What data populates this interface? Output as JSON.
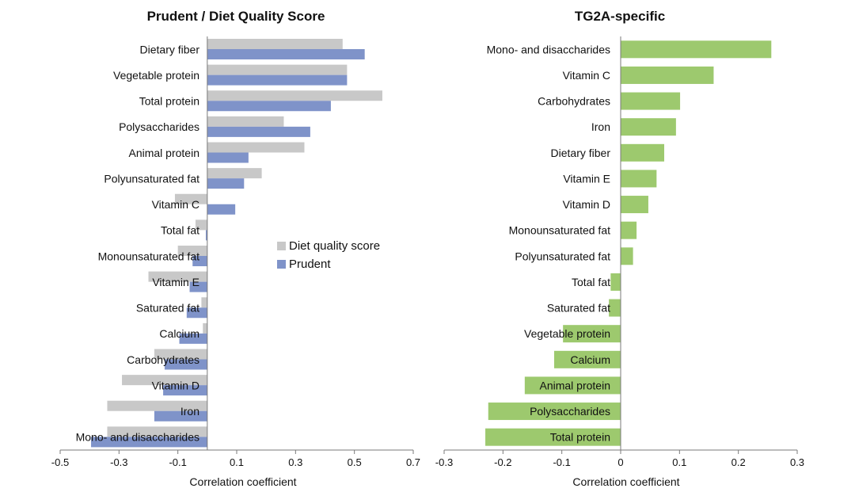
{
  "chart_data": [
    {
      "type": "bar",
      "orientation": "horizontal",
      "title": "Prudent / Diet Quality Score",
      "xlabel": "Correlation coefficient",
      "ylabel": "",
      "xlim": [
        -0.5,
        0.7
      ],
      "xticks": [
        "-0.5",
        "-0.3",
        "-0.1",
        "0.1",
        "0.3",
        "0.5",
        "0.7"
      ],
      "legend_position": "center-right",
      "categories": [
        "Dietary fiber",
        "Vegetable protein",
        "Total protein",
        "Polysaccharides",
        "Animal protein",
        "Polyunsaturated fat",
        "Vitamin C",
        "Total fat",
        "Monounsaturated fat",
        "Vitamin E",
        "Saturated fat",
        "Calcium",
        "Carbohydrates",
        "Vitamin D",
        "Iron",
        "Mono- and disaccharides"
      ],
      "series": [
        {
          "name": "Diet quality score",
          "color": "#c8c8c8",
          "values": [
            0.46,
            0.475,
            0.595,
            0.26,
            0.33,
            0.185,
            -0.11,
            -0.04,
            -0.1,
            -0.2,
            -0.02,
            -0.015,
            -0.18,
            -0.29,
            -0.34,
            -0.34
          ]
        },
        {
          "name": "Prudent",
          "color": "#7f93c9",
          "values": [
            0.535,
            0.475,
            0.42,
            0.35,
            0.14,
            0.125,
            0.095,
            -0.005,
            -0.05,
            -0.06,
            -0.07,
            -0.095,
            -0.145,
            -0.15,
            -0.18,
            -0.395
          ]
        }
      ]
    },
    {
      "type": "bar",
      "orientation": "horizontal",
      "title": "TG2A-specific",
      "xlabel": "Correlation coefficient",
      "ylabel": "",
      "xlim": [
        -0.3,
        0.3
      ],
      "xticks": [
        "-0.3",
        "-0.2",
        "-0.1",
        "0",
        "0.1",
        "0.2",
        "0.3"
      ],
      "categories": [
        "Mono- and disaccharides",
        "Vitamin C",
        "Carbohydrates",
        "Iron",
        "Dietary fiber",
        "Vitamin E",
        "Vitamin D",
        "Monounsaturated fat",
        "Polyunsaturated fat",
        "Total fat",
        "Saturated fat",
        "Vegetable protein",
        "Calcium",
        "Animal protein",
        "Polysaccharides",
        "Total protein"
      ],
      "series": [
        {
          "name": "TG2A-specific",
          "color": "#9dc96e",
          "values": [
            0.256,
            0.158,
            0.101,
            0.094,
            0.074,
            0.061,
            0.047,
            0.027,
            0.021,
            -0.017,
            -0.02,
            -0.098,
            -0.113,
            -0.163,
            -0.225,
            -0.23
          ]
        }
      ]
    }
  ]
}
